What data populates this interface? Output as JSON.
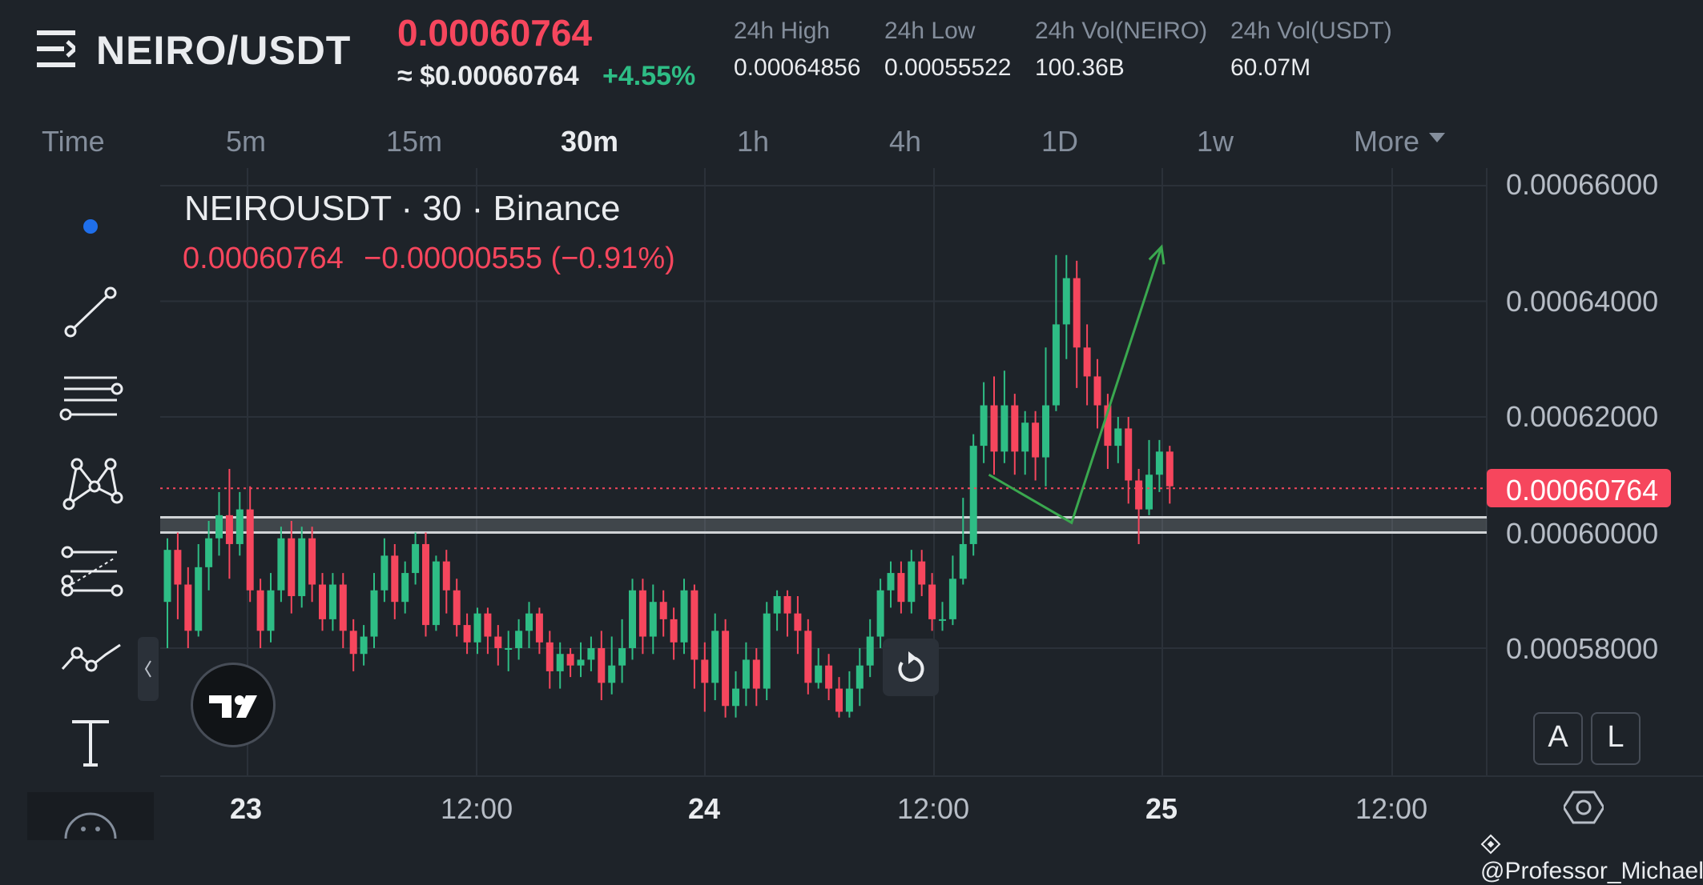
{
  "header": {
    "pair": "NEIRO/USDT",
    "last_price": "0.00060764",
    "usd_price": "≈ $0.00060764",
    "percent_change": "+4.55%",
    "stats": [
      {
        "label": "24h High",
        "value": "0.00064856"
      },
      {
        "label": "24h Low",
        "value": "0.00055522"
      },
      {
        "label": "24h Vol(NEIRO)",
        "value": "100.36B"
      },
      {
        "label": "24h Vol(USDT)",
        "value": "60.07M"
      }
    ]
  },
  "timeframes": [
    "Time",
    "5m",
    "15m",
    "30m",
    "1h",
    "4h",
    "1D",
    "1w",
    "More"
  ],
  "active_timeframe": "30m",
  "chart_data": {
    "type": "candlestick",
    "title": "NEIROUSDT · 30 · Binance",
    "legend_price": "0.00060764",
    "legend_change": "−0.00000555 (−0.91%)",
    "current_price_label": "0.00060764",
    "y_ticks": [
      "0.00066000",
      "0.00064000",
      "0.00062000",
      "0.00060000",
      "0.00058000"
    ],
    "x_ticks": [
      "23",
      "12:00",
      "24",
      "12:00",
      "25",
      "12:00"
    ],
    "ylim": [
      0.00057,
      0.000662
    ],
    "support_zone": [
      0.0006,
      0.00060263
    ],
    "current_price": 0.00060764,
    "projection_path": [
      {
        "t": 79.5,
        "p": 0.00061
      },
      {
        "t": 87.5,
        "p": 0.0006017
      },
      {
        "t": 96.2,
        "p": 0.0006494
      }
    ],
    "candles_ohlc": [
      [
        0.000588,
        0.000597,
        0.00058,
        0.000599
      ],
      [
        0.000597,
        0.000591,
        0.000585,
        0.0006
      ],
      [
        0.000591,
        0.000583,
        0.00058,
        0.000594
      ],
      [
        0.000583,
        0.000594,
        0.000582,
        0.000598
      ],
      [
        0.000594,
        0.000599,
        0.00059,
        0.000602
      ],
      [
        0.000599,
        0.000603,
        0.000596,
        0.000607
      ],
      [
        0.000603,
        0.000598,
        0.000592,
        0.000611
      ],
      [
        0.000598,
        0.000604,
        0.000596,
        0.000607
      ],
      [
        0.000604,
        0.00059,
        0.000588,
        0.000608
      ],
      [
        0.00059,
        0.000583,
        0.00058,
        0.000592
      ],
      [
        0.000583,
        0.00059,
        0.000581,
        0.000593
      ],
      [
        0.00059,
        0.000599,
        0.000588,
        0.000601
      ],
      [
        0.000599,
        0.000589,
        0.000586,
        0.000602
      ],
      [
        0.000589,
        0.000599,
        0.000587,
        0.000601
      ],
      [
        0.000599,
        0.000591,
        0.000588,
        0.000601
      ],
      [
        0.000591,
        0.000585,
        0.000583,
        0.000593
      ],
      [
        0.000585,
        0.000591,
        0.000583,
        0.000593
      ],
      [
        0.000591,
        0.000583,
        0.00058,
        0.000593
      ],
      [
        0.000583,
        0.000579,
        0.000576,
        0.000585
      ],
      [
        0.000579,
        0.000582,
        0.000577,
        0.000584
      ],
      [
        0.000582,
        0.00059,
        0.00058,
        0.000593
      ],
      [
        0.00059,
        0.000596,
        0.000588,
        0.000599
      ],
      [
        0.000596,
        0.000588,
        0.000585,
        0.000598
      ],
      [
        0.000588,
        0.000593,
        0.000586,
        0.000595
      ],
      [
        0.000593,
        0.000598,
        0.000591,
        0.0006
      ],
      [
        0.000598,
        0.000584,
        0.000582,
        0.0006
      ],
      [
        0.000584,
        0.000595,
        0.000583,
        0.000596
      ],
      [
        0.000595,
        0.00059,
        0.000586,
        0.000597
      ],
      [
        0.00059,
        0.000584,
        0.000582,
        0.000592
      ],
      [
        0.000584,
        0.000581,
        0.000579,
        0.000586
      ],
      [
        0.000581,
        0.000586,
        0.000579,
        0.000587
      ],
      [
        0.000586,
        0.000582,
        0.000579,
        0.000587
      ],
      [
        0.000582,
        0.00058,
        0.000577,
        0.000584
      ],
      [
        0.00058,
        0.00058,
        0.000576,
        0.000583
      ],
      [
        0.00058,
        0.000583,
        0.000578,
        0.000585
      ],
      [
        0.000583,
        0.000586,
        0.00058,
        0.000588
      ],
      [
        0.000586,
        0.000581,
        0.000579,
        0.000587
      ],
      [
        0.000581,
        0.000576,
        0.000573,
        0.000583
      ],
      [
        0.000576,
        0.000579,
        0.000573,
        0.000581
      ],
      [
        0.000579,
        0.000577,
        0.000575,
        0.00058
      ],
      [
        0.000577,
        0.000578,
        0.000575,
        0.000581
      ],
      [
        0.000578,
        0.00058,
        0.000576,
        0.000582
      ],
      [
        0.00058,
        0.000574,
        0.000571,
        0.000583
      ],
      [
        0.000574,
        0.000577,
        0.000572,
        0.000582
      ],
      [
        0.000577,
        0.00058,
        0.000574,
        0.000585
      ],
      [
        0.00058,
        0.00059,
        0.000578,
        0.000592
      ],
      [
        0.00059,
        0.000582,
        0.000579,
        0.000592
      ],
      [
        0.000582,
        0.000588,
        0.000579,
        0.000591
      ],
      [
        0.000588,
        0.000585,
        0.000582,
        0.00059
      ],
      [
        0.000585,
        0.000581,
        0.000578,
        0.000587
      ],
      [
        0.000581,
        0.00059,
        0.000579,
        0.000592
      ],
      [
        0.00059,
        0.000578,
        0.000573,
        0.000591
      ],
      [
        0.000578,
        0.000574,
        0.000569,
        0.000581
      ],
      [
        0.000574,
        0.000583,
        0.000571,
        0.000586
      ],
      [
        0.000583,
        0.00057,
        0.000568,
        0.000585
      ],
      [
        0.00057,
        0.000573,
        0.000568,
        0.000576
      ],
      [
        0.000573,
        0.000578,
        0.00057,
        0.000581
      ],
      [
        0.000578,
        0.000573,
        0.00057,
        0.00058
      ],
      [
        0.000573,
        0.000586,
        0.000571,
        0.000588
      ],
      [
        0.000586,
        0.000589,
        0.000583,
        0.00059
      ],
      [
        0.000589,
        0.000586,
        0.000582,
        0.00059
      ],
      [
        0.000586,
        0.000583,
        0.000579,
        0.000589
      ],
      [
        0.000583,
        0.000574,
        0.000572,
        0.000585
      ],
      [
        0.000574,
        0.000577,
        0.000573,
        0.00058
      ],
      [
        0.000577,
        0.000573,
        0.000571,
        0.000579
      ],
      [
        0.000573,
        0.000569,
        0.000568,
        0.000575
      ],
      [
        0.000569,
        0.000573,
        0.000568,
        0.000576
      ],
      [
        0.000573,
        0.000577,
        0.00057,
        0.00058
      ],
      [
        0.000577,
        0.000582,
        0.000575,
        0.000585
      ],
      [
        0.000582,
        0.00059,
        0.00058,
        0.000592
      ],
      [
        0.00059,
        0.000593,
        0.000587,
        0.000595
      ],
      [
        0.000593,
        0.000588,
        0.000586,
        0.000595
      ],
      [
        0.000588,
        0.000595,
        0.000586,
        0.000597
      ],
      [
        0.000595,
        0.000591,
        0.000589,
        0.000597
      ],
      [
        0.000591,
        0.000585,
        0.000583,
        0.000593
      ],
      [
        0.000585,
        0.000585,
        0.000583,
        0.000588
      ],
      [
        0.000585,
        0.000592,
        0.000584,
        0.000596
      ],
      [
        0.000592,
        0.000598,
        0.000591,
        0.000606
      ],
      [
        0.000598,
        0.000615,
        0.000596,
        0.000617
      ],
      [
        0.000615,
        0.000622,
        0.000612,
        0.000626
      ],
      [
        0.000622,
        0.000614,
        0.00061,
        0.000627
      ],
      [
        0.000614,
        0.000622,
        0.000612,
        0.000628
      ],
      [
        0.000622,
        0.000614,
        0.00061,
        0.000624
      ],
      [
        0.000614,
        0.000619,
        0.00061,
        0.000621
      ],
      [
        0.000619,
        0.000613,
        0.000609,
        0.000621
      ],
      [
        0.000613,
        0.000622,
        0.000608,
        0.000632
      ],
      [
        0.000622,
        0.000636,
        0.000621,
        0.000648
      ],
      [
        0.000636,
        0.000644,
        0.00063,
        0.000648
      ],
      [
        0.000644,
        0.000632,
        0.000625,
        0.000647
      ],
      [
        0.000632,
        0.000627,
        0.000622,
        0.000636
      ],
      [
        0.000627,
        0.000622,
        0.000618,
        0.00063
      ],
      [
        0.000622,
        0.000615,
        0.000611,
        0.000624
      ],
      [
        0.000615,
        0.000618,
        0.000612,
        0.00062
      ],
      [
        0.000618,
        0.000609,
        0.000605,
        0.00062
      ],
      [
        0.000609,
        0.000604,
        0.000598,
        0.000611
      ],
      [
        0.000604,
        0.00061,
        0.000603,
        0.000616
      ],
      [
        0.00061,
        0.000614,
        0.000607,
        0.000616
      ],
      [
        0.000614,
        0.000608,
        0.000605,
        0.000615
      ]
    ]
  },
  "toolbar": {
    "tools": [
      "cursor-dot-icon",
      "trend-line-icon",
      "horizontal-lines-icon",
      "pattern-icon",
      "fib-icon",
      "path-icon",
      "text-icon",
      "emoji-icon"
    ]
  },
  "buttons": {
    "auto_label": "A",
    "log_label": "L"
  },
  "watermark": "@Professor_Michael",
  "colors": {
    "up": "#2ebd85",
    "down": "#f6465d",
    "background": "#1e2329",
    "projection": "#3aa84f"
  }
}
